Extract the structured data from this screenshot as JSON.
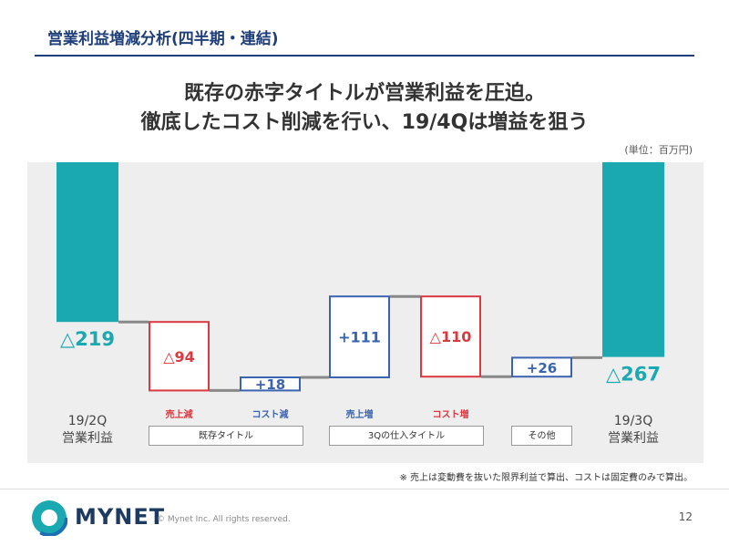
{
  "header": {
    "title": "営業利益増減分析(四半期・連結)"
  },
  "headline": {
    "line1": "既存の赤字タイトルが営業利益を圧迫。",
    "line2": "徹底したコスト削減を行い、19/4Qは増益を狙う"
  },
  "unit_label": "(単位：百万円)",
  "footnote": "※ 売上は変動費を抜いた限界利益で算出、コストは固定費のみで算出。",
  "footer": {
    "logo_text": "MYNET",
    "copyright": "© Mynet Inc. All rights reserved.",
    "page_number": "12"
  },
  "colors": {
    "teal": "#1aa8b1",
    "red": "#d9393f",
    "blue": "#3a63b0",
    "connector": "#888888"
  },
  "chart_data": {
    "type": "waterfall",
    "title": "",
    "ylim": [
      -300,
      0
    ],
    "bars": [
      {
        "kind": "total",
        "start": 0,
        "end": -219,
        "label": "△219",
        "category_lines": [
          "19/2Q",
          "営業利益"
        ]
      },
      {
        "kind": "decrease",
        "start": -219,
        "end": -313,
        "label": "△94",
        "category_lines": [
          "売上減"
        ]
      },
      {
        "kind": "increase",
        "start": -313,
        "end": -295,
        "label": "+18",
        "category_lines": [
          "コスト減"
        ]
      },
      {
        "kind": "increase",
        "start": -295,
        "end": -184,
        "label": "+111",
        "category_lines": [
          "売上増"
        ]
      },
      {
        "kind": "decrease",
        "start": -184,
        "end": -294,
        "label": "△110",
        "category_lines": [
          "コスト増"
        ]
      },
      {
        "kind": "increase",
        "start": -294,
        "end": -268,
        "label": "+26",
        "category_lines": []
      },
      {
        "kind": "total",
        "start": 0,
        "end": -267,
        "label": "△267",
        "category_lines": [
          "19/3Q",
          "営業利益"
        ]
      }
    ],
    "groups": [
      {
        "label": "既存タイトル"
      },
      {
        "label": "3Qの仕入タイトル"
      },
      {
        "label": "その他"
      }
    ]
  }
}
